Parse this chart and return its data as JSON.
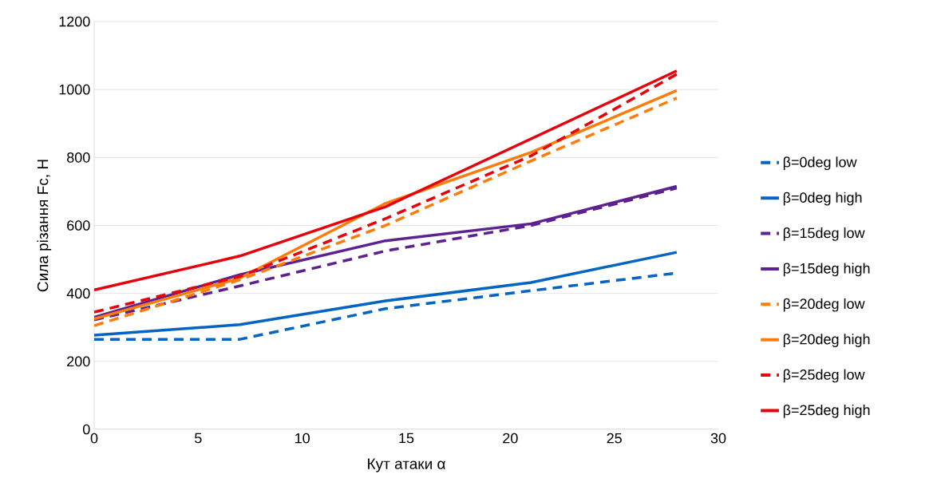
{
  "chart_data": {
    "type": "line",
    "xlabel": "Кут атаки α",
    "ylabel": "Сила різання Fc, Н",
    "x": [
      0,
      7,
      14,
      21,
      28
    ],
    "series": [
      {
        "name": "β=0deg low",
        "color": "#0563c1",
        "line_style": "dashed",
        "values": [
          265,
          265,
          355,
          408,
          460
        ]
      },
      {
        "name": "β=0deg high",
        "color": "#0563c1",
        "line_style": "solid",
        "values": [
          277,
          308,
          378,
          432,
          521
        ]
      },
      {
        "name": "β=15deg low",
        "color": "#5c2290",
        "line_style": "dashed",
        "values": [
          322,
          422,
          525,
          600,
          710
        ]
      },
      {
        "name": "β=15deg high",
        "color": "#5c2290",
        "line_style": "solid",
        "values": [
          330,
          455,
          555,
          605,
          715
        ]
      },
      {
        "name": "β=20deg low",
        "color": "#ff7c0a",
        "line_style": "dashed",
        "values": [
          305,
          440,
          600,
          790,
          975
        ]
      },
      {
        "name": "β=20deg high",
        "color": "#ff7c0a",
        "line_style": "solid",
        "values": [
          325,
          445,
          665,
          815,
          997
        ]
      },
      {
        "name": "β=25deg low",
        "color": "#e8000b",
        "line_style": "dashed",
        "values": [
          345,
          450,
          620,
          805,
          1045
        ]
      },
      {
        "name": "β=25deg high",
        "color": "#e8000b",
        "line_style": "solid",
        "values": [
          410,
          510,
          655,
          855,
          1055
        ]
      }
    ],
    "xlim": [
      0,
      30
    ],
    "xticks": [
      0,
      5,
      10,
      15,
      20,
      25,
      30
    ],
    "ylim": [
      0,
      1200
    ],
    "yticks": [
      0,
      200,
      400,
      600,
      800,
      1000,
      1200
    ],
    "grid": "y",
    "legend": "right",
    "marker": "none"
  }
}
